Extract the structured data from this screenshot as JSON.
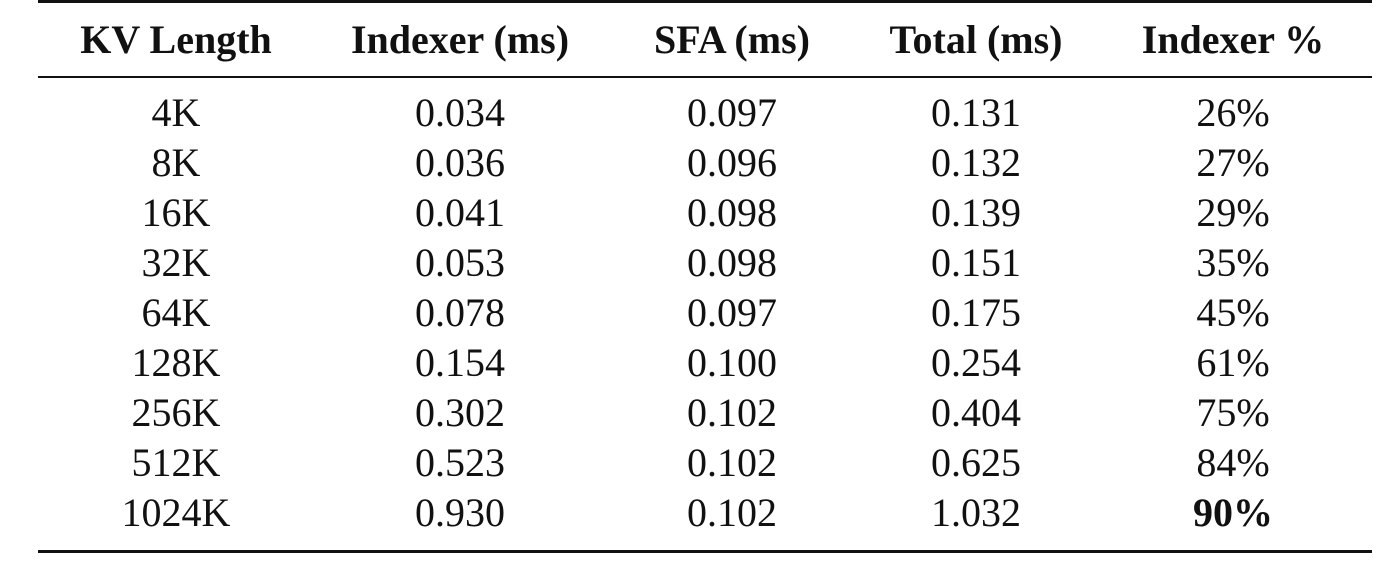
{
  "table": {
    "headers": [
      "KV Length",
      "Indexer (ms)",
      "SFA (ms)",
      "Total (ms)",
      "Indexer %"
    ],
    "rows": [
      [
        "4K",
        "0.034",
        "0.097",
        "0.131",
        "26%"
      ],
      [
        "8K",
        "0.036",
        "0.096",
        "0.132",
        "27%"
      ],
      [
        "16K",
        "0.041",
        "0.098",
        "0.139",
        "29%"
      ],
      [
        "32K",
        "0.053",
        "0.098",
        "0.151",
        "35%"
      ],
      [
        "64K",
        "0.078",
        "0.097",
        "0.175",
        "45%"
      ],
      [
        "128K",
        "0.154",
        "0.100",
        "0.254",
        "61%"
      ],
      [
        "256K",
        "0.302",
        "0.102",
        "0.404",
        "75%"
      ],
      [
        "512K",
        "0.523",
        "0.102",
        "0.625",
        "84%"
      ],
      [
        "1024K",
        "0.930",
        "0.102",
        "1.032",
        "90%"
      ]
    ],
    "bold_cells": [
      [
        8,
        4
      ]
    ]
  }
}
